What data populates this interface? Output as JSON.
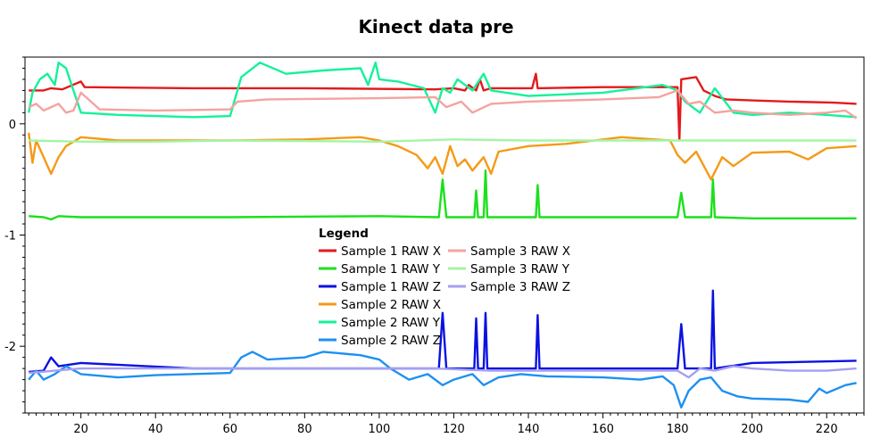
{
  "chart_data": {
    "type": "line",
    "title": "Kinect data pre",
    "xlabel": "",
    "ylabel": "",
    "xlim": [
      5,
      230
    ],
    "ylim": [
      -2.6,
      0.6
    ],
    "x_ticks": [
      20,
      40,
      60,
      80,
      100,
      120,
      140,
      160,
      180,
      200,
      220
    ],
    "y_ticks": [
      0,
      -1,
      -2
    ],
    "y_tick_labels": [
      "0",
      "-1",
      "-2"
    ],
    "grid": false,
    "legend": {
      "title": "Legend",
      "placement": "center",
      "columns": [
        [
          "Sample 1 RAW X",
          "Sample 1 RAW Y",
          "Sample 1 RAW Z",
          "Sample 2 RAW X",
          "Sample 2 RAW Y",
          "Sample 2 RAW Z"
        ],
        [
          "Sample 3 RAW X",
          "Sample 3 RAW Y",
          "Sample 3 RAW Z"
        ]
      ]
    },
    "series": [
      {
        "name": "Sample 1 RAW X",
        "color": "#e31a1c",
        "points": [
          [
            6,
            0.3
          ],
          [
            10,
            0.3
          ],
          [
            12,
            0.32
          ],
          [
            15,
            0.31
          ],
          [
            20,
            0.38
          ],
          [
            21,
            0.33
          ],
          [
            50,
            0.32
          ],
          [
            80,
            0.32
          ],
          [
            115,
            0.31
          ],
          [
            120,
            0.32
          ],
          [
            123,
            0.3
          ],
          [
            124,
            0.35
          ],
          [
            126,
            0.3
          ],
          [
            127,
            0.4
          ],
          [
            128,
            0.3
          ],
          [
            130,
            0.32
          ],
          [
            141,
            0.32
          ],
          [
            142,
            0.45
          ],
          [
            142.5,
            0.32
          ],
          [
            160,
            0.33
          ],
          [
            180,
            0.33
          ],
          [
            180.5,
            -0.15
          ],
          [
            181,
            0.4
          ],
          [
            185,
            0.42
          ],
          [
            187,
            0.3
          ],
          [
            190,
            0.25
          ],
          [
            193,
            0.22
          ],
          [
            200,
            0.21
          ],
          [
            210,
            0.2
          ],
          [
            222,
            0.19
          ],
          [
            228,
            0.18
          ]
        ]
      },
      {
        "name": "Sample 1 RAW Y",
        "color": "#1be11b",
        "points": [
          [
            6,
            -0.83
          ],
          [
            10,
            -0.84
          ],
          [
            12,
            -0.86
          ],
          [
            14,
            -0.83
          ],
          [
            20,
            -0.84
          ],
          [
            60,
            -0.84
          ],
          [
            100,
            -0.83
          ],
          [
            116,
            -0.84
          ],
          [
            117,
            -0.5
          ],
          [
            118,
            -0.84
          ],
          [
            125.5,
            -0.84
          ],
          [
            126,
            -0.6
          ],
          [
            126.5,
            -0.84
          ],
          [
            128,
            -0.84
          ],
          [
            128.5,
            -0.42
          ],
          [
            129,
            -0.84
          ],
          [
            142,
            -0.84
          ],
          [
            142.5,
            -0.55
          ],
          [
            143,
            -0.84
          ],
          [
            180,
            -0.84
          ],
          [
            181,
            -0.62
          ],
          [
            182,
            -0.84
          ],
          [
            189,
            -0.84
          ],
          [
            189.5,
            -0.5
          ],
          [
            190,
            -0.84
          ],
          [
            200,
            -0.85
          ],
          [
            228,
            -0.85
          ]
        ]
      },
      {
        "name": "Sample 1 RAW Z",
        "color": "#0a12e0",
        "points": [
          [
            6,
            -2.23
          ],
          [
            10,
            -2.22
          ],
          [
            12,
            -2.1
          ],
          [
            14,
            -2.18
          ],
          [
            20,
            -2.15
          ],
          [
            50,
            -2.2
          ],
          [
            100,
            -2.2
          ],
          [
            116,
            -2.2
          ],
          [
            117,
            -1.7
          ],
          [
            118,
            -2.2
          ],
          [
            125.5,
            -2.2
          ],
          [
            126,
            -1.75
          ],
          [
            126.5,
            -2.2
          ],
          [
            128,
            -2.2
          ],
          [
            128.5,
            -1.7
          ],
          [
            129,
            -2.2
          ],
          [
            142,
            -2.2
          ],
          [
            142.5,
            -1.72
          ],
          [
            143,
            -2.2
          ],
          [
            180,
            -2.2
          ],
          [
            181,
            -1.8
          ],
          [
            182,
            -2.2
          ],
          [
            189,
            -2.2
          ],
          [
            189.5,
            -1.5
          ],
          [
            190,
            -2.2
          ],
          [
            200,
            -2.15
          ],
          [
            228,
            -2.13
          ]
        ]
      },
      {
        "name": "Sample 2 RAW X",
        "color": "#f59a17",
        "points": [
          [
            6,
            -0.08
          ],
          [
            7,
            -0.35
          ],
          [
            8,
            -0.15
          ],
          [
            10,
            -0.3
          ],
          [
            12,
            -0.45
          ],
          [
            14,
            -0.3
          ],
          [
            16,
            -0.2
          ],
          [
            20,
            -0.12
          ],
          [
            30,
            -0.15
          ],
          [
            60,
            -0.15
          ],
          [
            80,
            -0.14
          ],
          [
            95,
            -0.12
          ],
          [
            100,
            -0.15
          ],
          [
            105,
            -0.2
          ],
          [
            110,
            -0.28
          ],
          [
            113,
            -0.4
          ],
          [
            115,
            -0.3
          ],
          [
            117,
            -0.45
          ],
          [
            119,
            -0.2
          ],
          [
            121,
            -0.38
          ],
          [
            123,
            -0.32
          ],
          [
            125,
            -0.42
          ],
          [
            128,
            -0.3
          ],
          [
            130,
            -0.45
          ],
          [
            132,
            -0.25
          ],
          [
            140,
            -0.2
          ],
          [
            150,
            -0.18
          ],
          [
            165,
            -0.12
          ],
          [
            178,
            -0.15
          ],
          [
            180,
            -0.28
          ],
          [
            182,
            -0.35
          ],
          [
            185,
            -0.25
          ],
          [
            189,
            -0.5
          ],
          [
            192,
            -0.3
          ],
          [
            195,
            -0.38
          ],
          [
            200,
            -0.26
          ],
          [
            210,
            -0.25
          ],
          [
            215,
            -0.32
          ],
          [
            220,
            -0.22
          ],
          [
            228,
            -0.2
          ]
        ]
      },
      {
        "name": "Sample 2 RAW Y",
        "color": "#14f299",
        "points": [
          [
            6,
            0.1
          ],
          [
            7,
            0.28
          ],
          [
            9,
            0.4
          ],
          [
            11,
            0.45
          ],
          [
            13,
            0.35
          ],
          [
            14,
            0.55
          ],
          [
            16,
            0.5
          ],
          [
            18,
            0.3
          ],
          [
            20,
            0.1
          ],
          [
            30,
            0.08
          ],
          [
            50,
            0.06
          ],
          [
            60,
            0.07
          ],
          [
            63,
            0.42
          ],
          [
            68,
            0.55
          ],
          [
            75,
            0.45
          ],
          [
            85,
            0.48
          ],
          [
            95,
            0.5
          ],
          [
            97,
            0.35
          ],
          [
            99,
            0.55
          ],
          [
            100,
            0.4
          ],
          [
            105,
            0.38
          ],
          [
            112,
            0.32
          ],
          [
            115,
            0.1
          ],
          [
            117,
            0.32
          ],
          [
            119,
            0.28
          ],
          [
            121,
            0.4
          ],
          [
            125,
            0.3
          ],
          [
            128,
            0.45
          ],
          [
            130,
            0.3
          ],
          [
            140,
            0.25
          ],
          [
            160,
            0.28
          ],
          [
            176,
            0.35
          ],
          [
            180,
            0.3
          ],
          [
            182,
            0.2
          ],
          [
            186,
            0.1
          ],
          [
            190,
            0.32
          ],
          [
            195,
            0.1
          ],
          [
            200,
            0.08
          ],
          [
            210,
            0.1
          ],
          [
            220,
            0.08
          ],
          [
            228,
            0.06
          ]
        ]
      },
      {
        "name": "Sample 2 RAW Z",
        "color": "#1e90f0",
        "points": [
          [
            6,
            -2.3
          ],
          [
            8,
            -2.22
          ],
          [
            10,
            -2.3
          ],
          [
            13,
            -2.25
          ],
          [
            16,
            -2.18
          ],
          [
            20,
            -2.25
          ],
          [
            30,
            -2.28
          ],
          [
            40,
            -2.26
          ],
          [
            60,
            -2.24
          ],
          [
            63,
            -2.1
          ],
          [
            66,
            -2.05
          ],
          [
            70,
            -2.12
          ],
          [
            80,
            -2.1
          ],
          [
            85,
            -2.05
          ],
          [
            95,
            -2.08
          ],
          [
            100,
            -2.12
          ],
          [
            103,
            -2.2
          ],
          [
            108,
            -2.3
          ],
          [
            113,
            -2.25
          ],
          [
            117,
            -2.35
          ],
          [
            120,
            -2.3
          ],
          [
            125,
            -2.25
          ],
          [
            128,
            -2.35
          ],
          [
            132,
            -2.28
          ],
          [
            138,
            -2.25
          ],
          [
            145,
            -2.27
          ],
          [
            160,
            -2.28
          ],
          [
            170,
            -2.3
          ],
          [
            176,
            -2.27
          ],
          [
            179,
            -2.35
          ],
          [
            181,
            -2.55
          ],
          [
            183,
            -2.4
          ],
          [
            186,
            -2.3
          ],
          [
            189,
            -2.28
          ],
          [
            192,
            -2.4
          ],
          [
            196,
            -2.45
          ],
          [
            200,
            -2.47
          ],
          [
            210,
            -2.48
          ],
          [
            215,
            -2.5
          ],
          [
            218,
            -2.38
          ],
          [
            220,
            -2.42
          ],
          [
            225,
            -2.35
          ],
          [
            228,
            -2.33
          ]
        ]
      },
      {
        "name": "Sample 3 RAW X",
        "color": "#f4a3a0",
        "points": [
          [
            6,
            0.15
          ],
          [
            8,
            0.18
          ],
          [
            10,
            0.12
          ],
          [
            14,
            0.18
          ],
          [
            16,
            0.1
          ],
          [
            18,
            0.12
          ],
          [
            20,
            0.28
          ],
          [
            25,
            0.13
          ],
          [
            40,
            0.12
          ],
          [
            60,
            0.13
          ],
          [
            62,
            0.2
          ],
          [
            70,
            0.22
          ],
          [
            100,
            0.23
          ],
          [
            115,
            0.24
          ],
          [
            118,
            0.15
          ],
          [
            122,
            0.2
          ],
          [
            125,
            0.1
          ],
          [
            130,
            0.18
          ],
          [
            140,
            0.2
          ],
          [
            160,
            0.22
          ],
          [
            175,
            0.24
          ],
          [
            180,
            0.3
          ],
          [
            183,
            0.18
          ],
          [
            186,
            0.2
          ],
          [
            190,
            0.1
          ],
          [
            195,
            0.12
          ],
          [
            200,
            0.1
          ],
          [
            210,
            0.08
          ],
          [
            220,
            0.1
          ],
          [
            225,
            0.12
          ],
          [
            228,
            0.05
          ]
        ]
      },
      {
        "name": "Sample 3 RAW Y",
        "color": "#a4f5a4",
        "points": [
          [
            6,
            -0.15
          ],
          [
            20,
            -0.16
          ],
          [
            40,
            -0.16
          ],
          [
            60,
            -0.15
          ],
          [
            100,
            -0.16
          ],
          [
            120,
            -0.14
          ],
          [
            140,
            -0.15
          ],
          [
            160,
            -0.15
          ],
          [
            180,
            -0.15
          ],
          [
            200,
            -0.15
          ],
          [
            228,
            -0.15
          ]
        ]
      },
      {
        "name": "Sample 3 RAW Z",
        "color": "#a59ff0",
        "points": [
          [
            6,
            -2.24
          ],
          [
            20,
            -2.2
          ],
          [
            40,
            -2.2
          ],
          [
            60,
            -2.2
          ],
          [
            80,
            -2.2
          ],
          [
            100,
            -2.2
          ],
          [
            115,
            -2.2
          ],
          [
            130,
            -2.22
          ],
          [
            150,
            -2.22
          ],
          [
            170,
            -2.22
          ],
          [
            180,
            -2.22
          ],
          [
            183,
            -2.28
          ],
          [
            186,
            -2.2
          ],
          [
            190,
            -2.22
          ],
          [
            195,
            -2.18
          ],
          [
            200,
            -2.2
          ],
          [
            210,
            -2.22
          ],
          [
            220,
            -2.22
          ],
          [
            228,
            -2.2
          ]
        ]
      }
    ]
  }
}
